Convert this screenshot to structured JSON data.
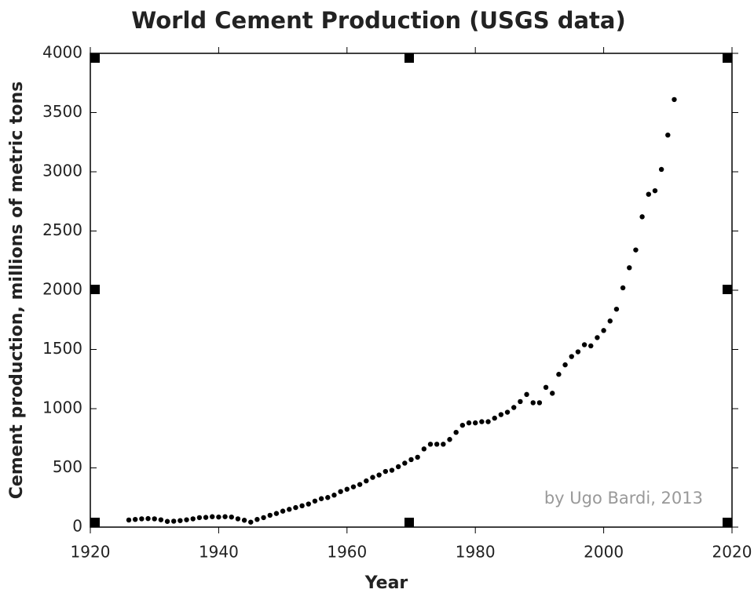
{
  "chart_data": {
    "type": "scatter",
    "title": "World Cement Production (USGS data)",
    "x_label": "Year",
    "y_label": "Cement production, millions of metric tons",
    "annotation": "by Ugo Bardi, 2013",
    "color": "#000000",
    "x": [
      1926,
      1927,
      1928,
      1929,
      1930,
      1931,
      1932,
      1933,
      1934,
      1935,
      1936,
      1937,
      1938,
      1939,
      1940,
      1941,
      1942,
      1943,
      1944,
      1945,
      1946,
      1947,
      1948,
      1949,
      1950,
      1951,
      1952,
      1953,
      1954,
      1955,
      1956,
      1957,
      1958,
      1959,
      1960,
      1961,
      1962,
      1963,
      1964,
      1965,
      1966,
      1967,
      1968,
      1969,
      1970,
      1971,
      1972,
      1973,
      1974,
      1975,
      1976,
      1977,
      1978,
      1979,
      1980,
      1981,
      1982,
      1983,
      1984,
      1985,
      1986,
      1987,
      1988,
      1989,
      1990,
      1991,
      1992,
      1993,
      1994,
      1995,
      1996,
      1997,
      1998,
      1999,
      2000,
      2001,
      2002,
      2003,
      2004,
      2005,
      2006,
      2007,
      2008,
      2009,
      2010,
      2011
    ],
    "values": [
      60,
      65,
      70,
      72,
      70,
      62,
      48,
      50,
      55,
      62,
      70,
      80,
      82,
      88,
      85,
      88,
      85,
      70,
      58,
      42,
      65,
      80,
      100,
      115,
      135,
      150,
      165,
      180,
      195,
      220,
      240,
      250,
      270,
      300,
      320,
      340,
      360,
      390,
      420,
      440,
      470,
      480,
      510,
      540,
      570,
      590,
      660,
      700,
      700,
      700,
      740,
      800,
      860,
      880,
      880,
      890,
      890,
      920,
      950,
      970,
      1010,
      1060,
      1120,
      1050,
      1050,
      1180,
      1130,
      1290,
      1370,
      1440,
      1480,
      1540,
      1530,
      1600,
      1660,
      1740,
      1840,
      2020,
      2190,
      2340,
      2620,
      2810,
      2840,
      3020,
      3310,
      3610
    ],
    "xlim": [
      1920,
      2020
    ],
    "xticks": [
      1920,
      1940,
      1960,
      1980,
      2000,
      2020
    ],
    "ylim": [
      0,
      4000
    ],
    "yticks": [
      0,
      500,
      1000,
      1500,
      2000,
      2500,
      3000,
      3500,
      4000
    ]
  }
}
